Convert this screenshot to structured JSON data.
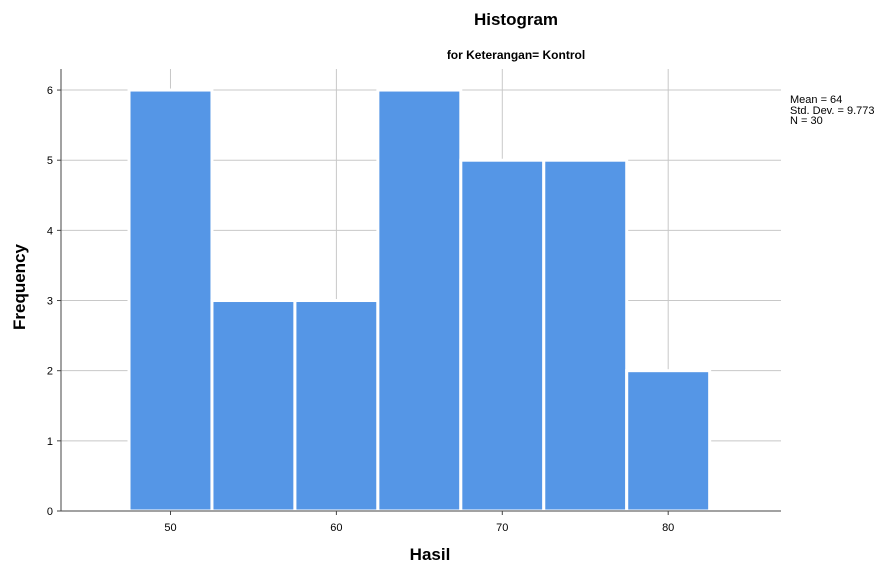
{
  "chart_data": {
    "type": "bar",
    "title": "Histogram",
    "subtitle": "for Keterangan= Kontrol",
    "xlabel": "Hasil",
    "ylabel": "Frequency",
    "bins": [
      {
        "start": 47.5,
        "end": 52.5,
        "value": 6
      },
      {
        "start": 52.5,
        "end": 57.5,
        "value": 3
      },
      {
        "start": 57.5,
        "end": 62.5,
        "value": 3
      },
      {
        "start": 62.5,
        "end": 67.5,
        "value": 6
      },
      {
        "start": 67.5,
        "end": 72.5,
        "value": 5
      },
      {
        "start": 72.5,
        "end": 77.5,
        "value": 5
      },
      {
        "start": 77.5,
        "end": 82.5,
        "value": 2
      }
    ],
    "xticks": [
      50,
      60,
      70,
      80
    ],
    "yticks": [
      0,
      1,
      2,
      3,
      4,
      5,
      6
    ],
    "xlim": [
      43.4,
      86.8
    ],
    "ylim": [
      0,
      6.3
    ],
    "grid": true,
    "bar_color": "#5596E6",
    "stats": [
      "Mean = 64",
      "Std. Dev. = 9.773",
      "N = 30"
    ]
  }
}
